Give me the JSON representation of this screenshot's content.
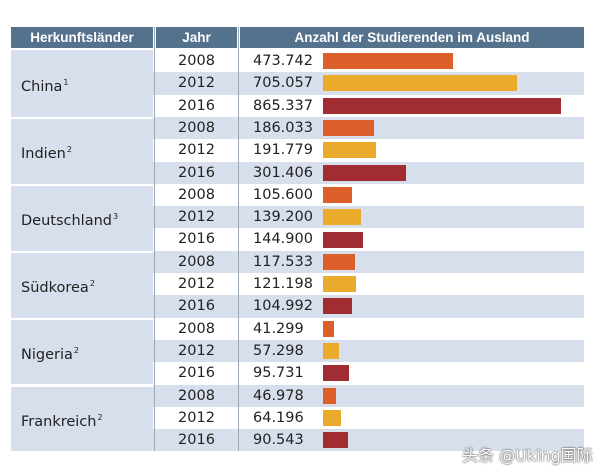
{
  "header": {
    "country": "Herkunftsländer",
    "year": "Jahr",
    "count": "Anzahl der Studierenden im Ausland"
  },
  "watermark": "头条 @Uking国际",
  "colors": {
    "2008": "#dc5f2a",
    "2012": "#eaaa2c",
    "2016": "#a12d33",
    "header": "#54728c",
    "band": "#d7dfed"
  },
  "chart_data": {
    "type": "bar",
    "orientation": "horizontal",
    "title": "Anzahl der Studierenden im Ausland",
    "categories": [
      "China",
      "Indien",
      "Deutschland",
      "Südkorea",
      "Nigeria",
      "Frankreich"
    ],
    "footnotes": [
      "1",
      "2",
      "3",
      "2",
      "2",
      "2"
    ],
    "series": [
      {
        "name": "2008",
        "labels": [
          "473.742",
          "186.033",
          "105.600",
          "117.533",
          "41.299",
          "46.978"
        ],
        "values": [
          473742,
          186033,
          105600,
          117533,
          41299,
          46978
        ]
      },
      {
        "name": "2012",
        "labels": [
          "705.057",
          "191.779",
          "139.200",
          "121.198",
          "57.298",
          "64.196"
        ],
        "values": [
          705057,
          191779,
          139200,
          121198,
          57298,
          64196
        ]
      },
      {
        "name": "2016",
        "labels": [
          "865.337",
          "301.406",
          "144.900",
          "104.992",
          "95.731",
          "90.543"
        ],
        "values": [
          865337,
          301406,
          144900,
          104992,
          95731,
          90543
        ]
      }
    ],
    "xlim": [
      0,
      865337
    ]
  }
}
